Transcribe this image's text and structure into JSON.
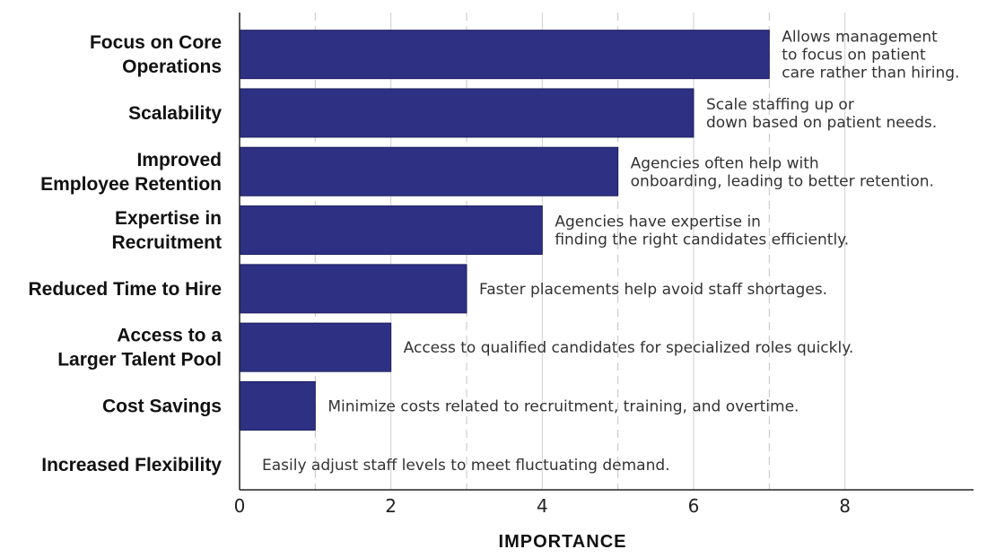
{
  "chart_data": {
    "type": "bar",
    "orientation": "horizontal",
    "title": "",
    "xlabel": "IMPORTANCE",
    "ylabel": "",
    "xlim": [
      0,
      9.7
    ],
    "xticks": [
      "0",
      "2",
      "4",
      "6",
      "8"
    ],
    "grid": {
      "solid_at": [
        2,
        4,
        6,
        8
      ],
      "dashed_at": [
        1,
        3,
        5,
        7
      ]
    },
    "bar_color": "#2e3084",
    "categories": [
      {
        "label": [
          "Focus on Core",
          "Operations"
        ],
        "value": 7,
        "note": [
          "Allows management",
          "to focus on patient",
          "care rather than hiring."
        ]
      },
      {
        "label": [
          "Scalability"
        ],
        "value": 6,
        "note": [
          "Scale staffing up or",
          "down based on patient needs."
        ]
      },
      {
        "label": [
          "Improved",
          "Employee Retention"
        ],
        "value": 5,
        "note": [
          "Agencies often help with",
          "onboarding, leading to better retention."
        ]
      },
      {
        "label": [
          "Expertise in",
          "Recruitment"
        ],
        "value": 4,
        "note": [
          "Agencies have expertise in",
          "finding the right candidates efficiently."
        ]
      },
      {
        "label": [
          "Reduced Time to Hire"
        ],
        "value": 3,
        "note": [
          "Faster placements help avoid staff shortages."
        ]
      },
      {
        "label": [
          "Access to a",
          "Larger Talent Pool"
        ],
        "value": 2,
        "note": [
          "Access to qualified candidates for specialized roles quickly."
        ]
      },
      {
        "label": [
          "Cost Savings"
        ],
        "value": 1,
        "note": [
          "Minimize costs related to recruitment, training, and overtime."
        ]
      },
      {
        "label": [
          "Increased Flexibility"
        ],
        "value": 0,
        "note": [
          "Easily adjust staff levels to meet fluctuating demand."
        ]
      }
    ]
  }
}
